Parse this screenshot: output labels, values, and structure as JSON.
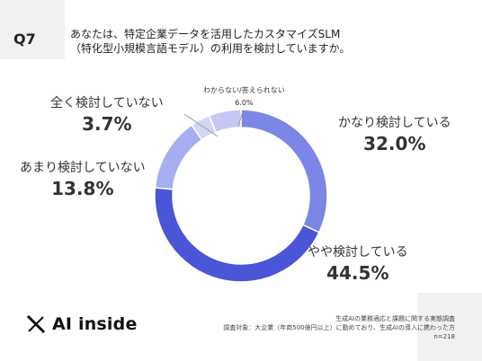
{
  "question": {
    "number": "Q7",
    "line1": "あなたは、特定企業データを活用したカスタマイズSLM",
    "line2": "（特化型小規模言語モデル）の利用を検討していますか。"
  },
  "chart_data": {
    "type": "pie",
    "variant": "donut",
    "categories": [
      "かなり検討している",
      "やや検討している",
      "あまり検討していない",
      "全く検討していない",
      "わからない/答えられない"
    ],
    "values": [
      32.0,
      44.5,
      13.8,
      3.7,
      6.0
    ],
    "value_labels": [
      "32.0%",
      "44.5%",
      "13.8%",
      "3.7%",
      "6.0%"
    ],
    "colors": [
      "#7b86e6",
      "#4a55d8",
      "#a6aef0",
      "#d3d7f6",
      "#c3c8f4"
    ]
  },
  "logo": {
    "text": "AI inside"
  },
  "footer": {
    "line1": "生成AIの業務適応と課題に関する実態調査",
    "line2": "調査対象：大企業（年商500億円以上）に勤めており、生成AIの導入に携わった方",
    "line3": "n=218"
  }
}
